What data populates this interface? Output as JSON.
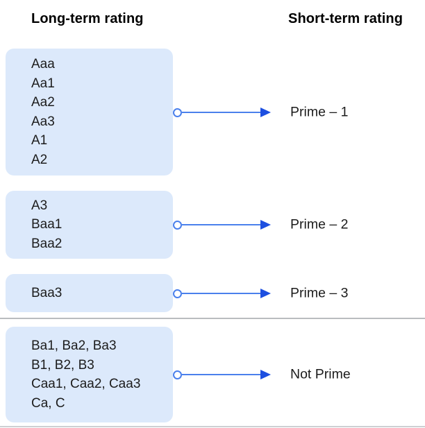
{
  "columns": {
    "long_term_header": "Long-term rating",
    "short_term_header": "Short-term rating"
  },
  "mappings": [
    {
      "long_term": [
        "Aaa",
        "Aa1",
        "Aa2",
        "Aa3",
        "A1",
        "A2"
      ],
      "short_term": "Prime – 1"
    },
    {
      "long_term": [
        "A3",
        "Baa1",
        "Baa2"
      ],
      "short_term": "Prime – 2"
    },
    {
      "long_term": [
        "Baa3"
      ],
      "short_term": "Prime – 3"
    },
    {
      "long_term": [
        "Ba1, Ba2, Ba3",
        "B1, B2, B3",
        "Caa1, Caa2, Caa3",
        "Ca, C"
      ],
      "short_term": "Not Prime"
    }
  ],
  "icons": {
    "connector_dot": "circle-outline-icon",
    "connector_arrow": "triangle-right-icon"
  },
  "colors": {
    "box_fill": "#dce9fb",
    "connector_line": "#4a80ec",
    "connector_arrow": "#1d4fe0",
    "divider": "#b9bcbf",
    "divider_light": "#cdd0d3",
    "text": "#1c1c1c",
    "header_text": "#000000"
  }
}
